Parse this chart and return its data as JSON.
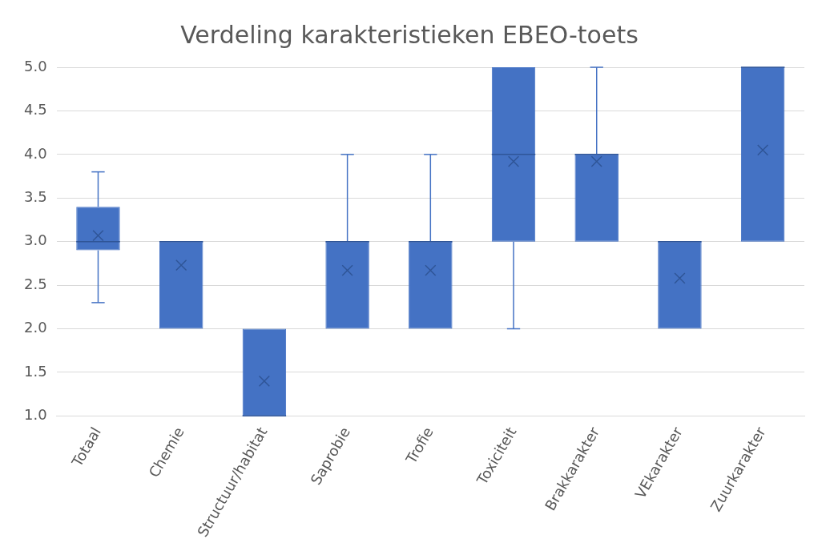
{
  "chart_data": {
    "type": "box",
    "title": "Verdeling karakteristieken EBEO-toets",
    "categories": [
      "Totaal",
      "Chemie",
      "Structuur/habitat",
      "Saprobie",
      "Trofie",
      "Toxiciteit",
      "Brakkarakter",
      "VEkarakter",
      "Zuurkarakter"
    ],
    "color": "#4472c4",
    "boxes": [
      {
        "low": 2.3,
        "q1": 2.9,
        "median": 3.0,
        "q3": 3.4,
        "high": 3.8,
        "mean": 3.07
      },
      {
        "low": 2.0,
        "q1": 2.0,
        "median": 3.0,
        "q3": 3.0,
        "high": 3.0,
        "mean": 2.73
      },
      {
        "low": 1.0,
        "q1": 1.0,
        "median": 1.0,
        "q3": 2.0,
        "high": 2.0,
        "mean": 1.4
      },
      {
        "low": 2.0,
        "q1": 2.0,
        "median": 3.0,
        "q3": 3.0,
        "high": 4.0,
        "mean": 2.67
      },
      {
        "low": 2.0,
        "q1": 2.0,
        "median": 3.0,
        "q3": 3.0,
        "high": 4.0,
        "mean": 2.67
      },
      {
        "low": 2.0,
        "q1": 3.0,
        "median": 4.0,
        "q3": 5.0,
        "high": 5.0,
        "mean": 3.92
      },
      {
        "low": 3.0,
        "q1": 3.0,
        "median": 4.0,
        "q3": 4.0,
        "high": 5.0,
        "mean": 3.92
      },
      {
        "low": 2.0,
        "q1": 2.0,
        "median": 3.0,
        "q3": 3.0,
        "high": 3.0,
        "mean": 2.58
      },
      {
        "low": 3.0,
        "q1": 3.0,
        "median": 5.0,
        "q3": 5.0,
        "high": 5.0,
        "mean": 4.05
      }
    ],
    "ylim": [
      1.0,
      5.0
    ],
    "yticks": [
      {
        "value": 1,
        "label": "1.0"
      },
      {
        "value": 1.5,
        "label": "1.5"
      },
      {
        "value": 2,
        "label": "2.0"
      },
      {
        "value": 2.5,
        "label": "2.5"
      },
      {
        "value": 3,
        "label": "3.0"
      },
      {
        "value": 3.5,
        "label": "3.5"
      },
      {
        "value": 4,
        "label": "4.0"
      },
      {
        "value": 4.5,
        "label": "4.5"
      },
      {
        "value": 5,
        "label": "5.0"
      }
    ],
    "grid": "y"
  }
}
